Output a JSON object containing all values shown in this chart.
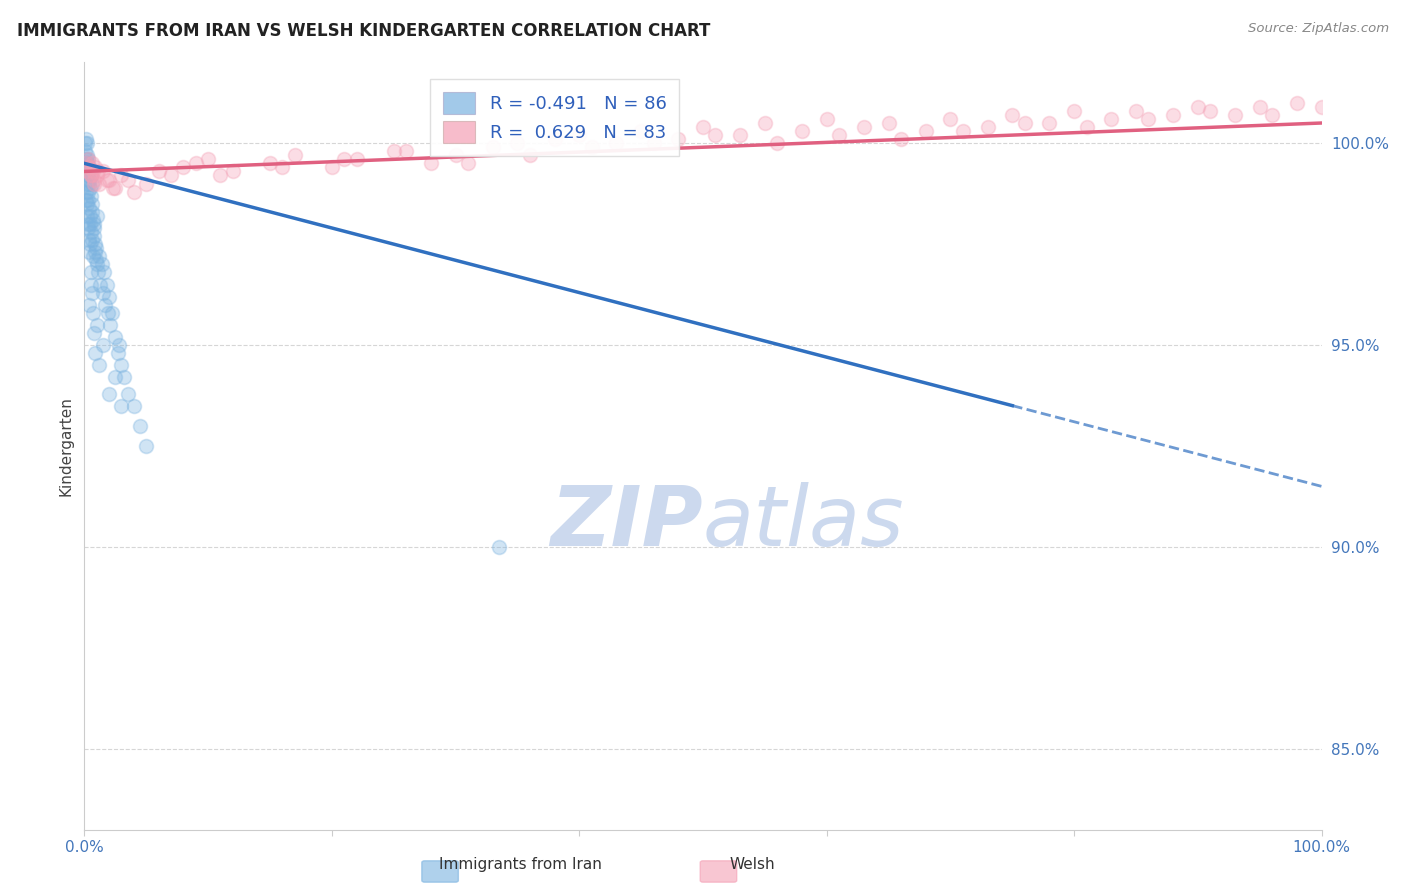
{
  "title": "IMMIGRANTS FROM IRAN VS WELSH KINDERGARTEN CORRELATION CHART",
  "source": "Source: ZipAtlas.com",
  "ylabel": "Kindergarten",
  "xlim": [
    0.0,
    100.0
  ],
  "ylim": [
    83.0,
    102.0
  ],
  "right_yticks": [
    85.0,
    90.0,
    95.0,
    100.0
  ],
  "blue_R": -0.491,
  "blue_N": 86,
  "pink_R": 0.629,
  "pink_N": 83,
  "blue_color": "#7bb3e0",
  "pink_color": "#f4a0b5",
  "blue_line_color": "#3070c0",
  "pink_line_color": "#e06080",
  "watermark_color": "#ccd9ee",
  "background_color": "#ffffff",
  "grid_color": "#cccccc",
  "blue_line_x0": 0.0,
  "blue_line_y0": 99.5,
  "blue_line_x1": 100.0,
  "blue_line_y1": 91.5,
  "blue_solid_end": 75.0,
  "pink_line_x0": 0.0,
  "pink_line_y0": 99.3,
  "pink_line_x1": 100.0,
  "pink_line_y1": 100.5,
  "blue_scatter_x": [
    0.05,
    0.08,
    0.1,
    0.12,
    0.15,
    0.15,
    0.18,
    0.2,
    0.2,
    0.22,
    0.25,
    0.25,
    0.28,
    0.3,
    0.3,
    0.32,
    0.35,
    0.35,
    0.38,
    0.4,
    0.42,
    0.45,
    0.48,
    0.5,
    0.55,
    0.55,
    0.6,
    0.62,
    0.65,
    0.65,
    0.7,
    0.75,
    0.78,
    0.8,
    0.85,
    0.9,
    0.92,
    0.95,
    1.0,
    1.0,
    1.1,
    1.2,
    1.3,
    1.4,
    1.5,
    1.6,
    1.7,
    1.8,
    1.9,
    2.0,
    2.1,
    2.2,
    2.5,
    2.7,
    2.8,
    3.0,
    3.2,
    3.5,
    4.0,
    4.5,
    5.0,
    0.1,
    0.15,
    0.2,
    0.25,
    0.3,
    0.35,
    0.4,
    0.5,
    0.6,
    0.7,
    0.8,
    0.9,
    1.0,
    1.2,
    1.5,
    2.0,
    2.5,
    3.0,
    0.17,
    0.27,
    0.45,
    0.55,
    33.5,
    0.67,
    0.37
  ],
  "blue_scatter_y": [
    99.8,
    100.0,
    99.5,
    99.6,
    99.4,
    100.1,
    99.2,
    99.5,
    100.0,
    99.0,
    99.3,
    99.7,
    98.8,
    99.2,
    99.6,
    98.6,
    99.0,
    99.4,
    98.4,
    99.1,
    98.2,
    98.9,
    98.0,
    98.7,
    97.8,
    99.2,
    98.5,
    97.6,
    98.3,
    99.0,
    98.1,
    97.9,
    97.7,
    98.0,
    97.5,
    97.3,
    97.1,
    97.4,
    97.0,
    98.2,
    96.8,
    97.2,
    96.5,
    97.0,
    96.3,
    96.8,
    96.0,
    96.5,
    95.8,
    96.2,
    95.5,
    95.8,
    95.2,
    94.8,
    95.0,
    94.5,
    94.2,
    93.8,
    93.5,
    93.0,
    92.5,
    99.3,
    98.8,
    98.5,
    98.2,
    97.9,
    97.6,
    97.3,
    96.8,
    96.3,
    95.8,
    95.3,
    94.8,
    95.5,
    94.5,
    95.0,
    93.8,
    94.2,
    93.5,
    98.6,
    98.0,
    97.5,
    96.5,
    90.0,
    97.2,
    96.0
  ],
  "pink_scatter_x": [
    0.1,
    0.2,
    0.3,
    0.4,
    0.5,
    0.6,
    0.7,
    0.8,
    0.9,
    1.0,
    1.2,
    1.5,
    2.0,
    2.5,
    3.0,
    4.0,
    5.0,
    7.0,
    8.0,
    10.0,
    12.0,
    15.0,
    17.0,
    20.0,
    22.0,
    25.0,
    28.0,
    30.0,
    33.0,
    35.0,
    38.0,
    40.0,
    43.0,
    45.0,
    48.0,
    50.0,
    53.0,
    55.0,
    58.0,
    60.0,
    63.0,
    65.0,
    68.0,
    70.0,
    73.0,
    75.0,
    78.0,
    80.0,
    83.0,
    85.0,
    88.0,
    90.0,
    93.0,
    95.0,
    98.0,
    100.0,
    0.3,
    0.5,
    0.8,
    1.1,
    1.8,
    2.3,
    3.5,
    6.0,
    9.0,
    11.0,
    16.0,
    21.0,
    26.0,
    31.0,
    36.0,
    41.0,
    46.0,
    51.0,
    56.0,
    61.0,
    66.0,
    71.0,
    76.0,
    81.0,
    86.0,
    91.0,
    96.0
  ],
  "pink_scatter_y": [
    99.5,
    99.3,
    99.6,
    99.4,
    99.2,
    99.5,
    99.3,
    99.1,
    99.4,
    99.2,
    99.0,
    99.3,
    99.1,
    98.9,
    99.2,
    98.8,
    99.0,
    99.2,
    99.4,
    99.6,
    99.3,
    99.5,
    99.7,
    99.4,
    99.6,
    99.8,
    99.5,
    99.7,
    99.9,
    100.0,
    100.1,
    100.2,
    100.0,
    100.3,
    100.1,
    100.4,
    100.2,
    100.5,
    100.3,
    100.6,
    100.4,
    100.5,
    100.3,
    100.6,
    100.4,
    100.7,
    100.5,
    100.8,
    100.6,
    100.8,
    100.7,
    100.9,
    100.7,
    100.9,
    101.0,
    100.9,
    99.4,
    99.2,
    99.0,
    99.3,
    99.1,
    98.9,
    99.1,
    99.3,
    99.5,
    99.2,
    99.4,
    99.6,
    99.8,
    99.5,
    99.7,
    99.9,
    100.0,
    100.2,
    100.0,
    100.2,
    100.1,
    100.3,
    100.5,
    100.4,
    100.6,
    100.8,
    100.7
  ]
}
